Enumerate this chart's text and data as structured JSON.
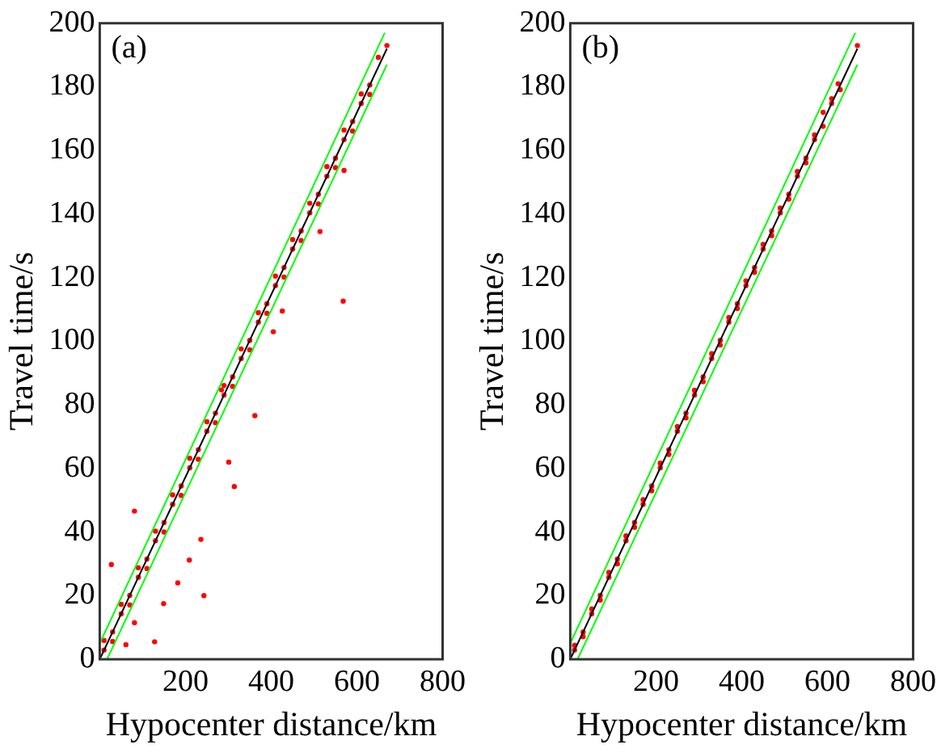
{
  "chart_data": [
    {
      "type": "scatter",
      "xlabel": "Hypocenter distance/km",
      "ylabel": "Travel time/s",
      "annotations": [
        "(a)"
      ],
      "xlim": [
        0,
        800
      ],
      "ylim": [
        0,
        200
      ],
      "xticks": [
        200,
        400,
        600,
        800
      ],
      "yticks": [
        0,
        20,
        40,
        60,
        80,
        100,
        120,
        140,
        160,
        180,
        200
      ],
      "grid": false,
      "legend": false,
      "series": [
        {
          "marker": "circle",
          "color": "#ff0000",
          "x": [
            10,
            30,
            50,
            70,
            90,
            110,
            130,
            150,
            170,
            190,
            210,
            230,
            250,
            270,
            290,
            310,
            330,
            350,
            370,
            390,
            410,
            430,
            450,
            470,
            490,
            510,
            530,
            550,
            570,
            590,
            610,
            630,
            650,
            670,
            10,
            30,
            50,
            70,
            90,
            110,
            130,
            150,
            170,
            190,
            210,
            230,
            250,
            270,
            290,
            310,
            330,
            350,
            370,
            390,
            410,
            430,
            450,
            470,
            490,
            510,
            530,
            550,
            570,
            590,
            610,
            630,
            570,
            568,
            362,
            314,
            301,
            236,
            243,
            149,
            182,
            128,
            81,
            27,
            209,
            284,
            405,
            426,
            81,
            61,
            514
          ],
          "values": [
            5.9,
            5.6,
            17.3,
            17.1,
            28.8,
            28.5,
            40.3,
            40,
            51.7,
            51.5,
            63.2,
            62.9,
            74.7,
            74.4,
            86.1,
            85.8,
            97.6,
            97.3,
            109,
            108.8,
            120.5,
            120.2,
            132,
            131.7,
            143.4,
            143.2,
            154.9,
            154.6,
            166.4,
            166.1,
            177.8,
            177.6,
            189.3,
            193,
            2.9,
            8.6,
            14.3,
            20.1,
            25.8,
            31.5,
            37.3,
            43,
            48.7,
            54.5,
            60.2,
            65.9,
            71.7,
            77.4,
            83.1,
            88.8,
            94.6,
            100.3,
            106,
            111.8,
            117.5,
            123.2,
            129,
            134.7,
            140.4,
            146.2,
            151.9,
            157.6,
            163.4,
            169.1,
            174.8,
            180.6,
            153.7,
            112.6,
            76.6,
            54.3,
            62,
            37.7,
            20,
            17.5,
            24,
            5.5,
            46.6,
            29.8,
            31.2,
            84.7,
            103,
            109.5,
            11.5,
            4.6,
            134.5
          ]
        },
        {
          "type": "line",
          "color": "#000000",
          "x": [
            0,
            670
          ],
          "values": [
            0,
            192
          ]
        },
        {
          "type": "line",
          "color": "#00ff00",
          "x": [
            0,
            665
          ],
          "values": [
            5,
            197
          ]
        },
        {
          "type": "line",
          "color": "#00ff00",
          "x": [
            17,
            670
          ],
          "values": [
            0,
            187
          ]
        }
      ]
    },
    {
      "type": "scatter",
      "xlabel": "Hypocenter distance/km",
      "ylabel": "Travel time/s",
      "annotations": [
        "(b)"
      ],
      "xlim": [
        0,
        800
      ],
      "ylim": [
        0,
        200
      ],
      "xticks": [
        200,
        400,
        600,
        800
      ],
      "yticks": [
        0,
        20,
        40,
        60,
        80,
        100,
        120,
        140,
        160,
        180,
        200
      ],
      "grid": false,
      "legend": false,
      "series": [
        {
          "marker": "circle",
          "color": "#ff0000",
          "x": [
            10,
            30,
            50,
            70,
            90,
            110,
            130,
            150,
            170,
            190,
            210,
            230,
            250,
            270,
            290,
            310,
            330,
            350,
            370,
            390,
            410,
            430,
            450,
            470,
            490,
            510,
            530,
            550,
            570,
            590,
            610,
            630,
            10,
            30,
            50,
            70,
            90,
            110,
            130,
            150,
            170,
            190,
            210,
            230,
            250,
            270,
            290,
            310,
            330,
            350,
            370,
            390,
            410,
            430,
            450,
            470,
            490,
            510,
            530,
            550,
            570,
            590,
            610,
            625,
            670
          ],
          "values": [
            4.4,
            7.1,
            15.8,
            18.6,
            27.3,
            30,
            38.8,
            41.5,
            50.2,
            53,
            61.7,
            64.4,
            73.2,
            75.9,
            84.6,
            87.3,
            96.1,
            98.8,
            107.5,
            110.3,
            119,
            121.7,
            130.5,
            133.2,
            141.9,
            144.7,
            153.4,
            156.1,
            164.9,
            167.6,
            176.3,
            179.1,
            2.9,
            8.6,
            14.3,
            20.1,
            25.8,
            31.5,
            37.3,
            43,
            48.7,
            54.5,
            60.2,
            65.9,
            71.7,
            77.4,
            83.1,
            88.8,
            94.6,
            100.3,
            106,
            111.8,
            117.5,
            123.2,
            129,
            134.7,
            140.4,
            146.2,
            151.9,
            157.6,
            163.4,
            172,
            174.8,
            181,
            193
          ]
        },
        {
          "type": "line",
          "color": "#000000",
          "x": [
            0,
            670
          ],
          "values": [
            0,
            192
          ]
        },
        {
          "type": "line",
          "color": "#00ff00",
          "x": [
            0,
            665
          ],
          "values": [
            5,
            197
          ]
        },
        {
          "type": "line",
          "color": "#00ff00",
          "x": [
            17,
            670
          ],
          "values": [
            0,
            187
          ]
        }
      ]
    }
  ]
}
